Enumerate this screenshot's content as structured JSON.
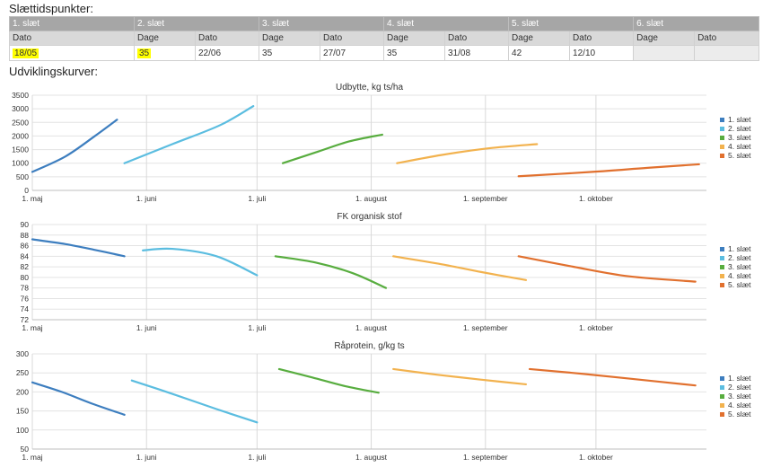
{
  "headings": {
    "cut_times": "Slættidspunkter:",
    "curves": "Udviklingskurver:"
  },
  "table": {
    "headers": [
      "1. slæt",
      "2. slæt",
      "3. slæt",
      "4. slæt",
      "5. slæt",
      "6. slæt"
    ],
    "sub": [
      "Dato",
      "Dage",
      "Dato",
      "Dage",
      "Dato",
      "Dage",
      "Dato",
      "Dage",
      "Dato",
      "Dage",
      "Dato"
    ],
    "values": [
      "18/05",
      "35",
      "22/06",
      "35",
      "27/07",
      "35",
      "31/08",
      "42",
      "12/10",
      "",
      ""
    ]
  },
  "colors": {
    "1. slæt": "#3d7ebf",
    "2. slæt": "#5bbde0",
    "3. slæt": "#58ad3f",
    "4. slæt": "#f2b24e",
    "5. slæt": "#e1702e"
  },
  "chart_data": [
    {
      "type": "line",
      "title": "Udbytte, kg ts/ha",
      "x_axis_type": "date",
      "x_tick_labels": [
        "1. maj",
        "1. juni",
        "1. juli",
        "1. august",
        "1. september",
        "1. oktober"
      ],
      "x_tick_dates": [
        "05-01",
        "06-01",
        "07-01",
        "08-01",
        "09-01",
        "10-01"
      ],
      "xlim": [
        "05-01",
        "10-31"
      ],
      "ylim": [
        0,
        3500
      ],
      "yticks": [
        0,
        500,
        1000,
        1500,
        2000,
        2500,
        3000,
        3500
      ],
      "grid": true,
      "legend": "right",
      "series": [
        {
          "name": "1. slæt",
          "points": [
            [
              "05-01",
              680
            ],
            [
              "05-10",
              1250
            ],
            [
              "05-18",
              2000
            ],
            [
              "05-24",
              2600
            ]
          ]
        },
        {
          "name": "2. slæt",
          "points": [
            [
              "05-26",
              1000
            ],
            [
              "06-08",
              1700
            ],
            [
              "06-21",
              2400
            ],
            [
              "06-30",
              3100
            ]
          ]
        },
        {
          "name": "3. slæt",
          "points": [
            [
              "07-08",
              1000
            ],
            [
              "07-17",
              1400
            ],
            [
              "07-26",
              1800
            ],
            [
              "08-04",
              2050
            ]
          ]
        },
        {
          "name": "4. slæt",
          "points": [
            [
              "08-08",
              1000
            ],
            [
              "08-20",
              1300
            ],
            [
              "09-02",
              1550
            ],
            [
              "09-15",
              1700
            ]
          ]
        },
        {
          "name": "5. slæt",
          "points": [
            [
              "09-10",
              520
            ],
            [
              "09-30",
              680
            ],
            [
              "10-15",
              830
            ],
            [
              "10-29",
              960
            ]
          ]
        }
      ]
    },
    {
      "type": "line",
      "title": "FK organisk stof",
      "x_axis_type": "date",
      "x_tick_labels": [
        "1. maj",
        "1. juni",
        "1. juli",
        "1. august",
        "1. september",
        "1. oktober"
      ],
      "x_tick_dates": [
        "05-01",
        "06-01",
        "07-01",
        "08-01",
        "09-01",
        "10-01"
      ],
      "xlim": [
        "05-01",
        "10-31"
      ],
      "ylim": [
        72,
        90
      ],
      "yticks": [
        72,
        74,
        76,
        78,
        80,
        82,
        84,
        86,
        88,
        90
      ],
      "grid": true,
      "legend": "right",
      "series": [
        {
          "name": "1. slæt",
          "points": [
            [
              "05-01",
              87.2
            ],
            [
              "05-10",
              86.3
            ],
            [
              "05-18",
              85.2
            ],
            [
              "05-26",
              84.0
            ]
          ]
        },
        {
          "name": "2. slæt",
          "points": [
            [
              "05-31",
              85.1
            ],
            [
              "06-08",
              85.4
            ],
            [
              "06-20",
              84.0
            ],
            [
              "07-01",
              80.4
            ]
          ]
        },
        {
          "name": "3. slæt",
          "points": [
            [
              "07-06",
              84.0
            ],
            [
              "07-17",
              82.8
            ],
            [
              "07-27",
              80.8
            ],
            [
              "08-05",
              78.0
            ]
          ]
        },
        {
          "name": "4. slæt",
          "points": [
            [
              "08-07",
              84.0
            ],
            [
              "08-20",
              82.5
            ],
            [
              "08-31",
              81.0
            ],
            [
              "09-12",
              79.5
            ]
          ]
        },
        {
          "name": "5. slæt",
          "points": [
            [
              "09-10",
              84.0
            ],
            [
              "09-25",
              82.0
            ],
            [
              "10-10",
              80.2
            ],
            [
              "10-28",
              79.2
            ]
          ]
        }
      ]
    },
    {
      "type": "line",
      "title": "Råprotein, g/kg ts",
      "x_axis_type": "date",
      "x_tick_labels": [
        "1. maj",
        "1. juni",
        "1. juli",
        "1. august",
        "1. september",
        "1. oktober"
      ],
      "x_tick_dates": [
        "05-01",
        "06-01",
        "07-01",
        "08-01",
        "09-01",
        "10-01"
      ],
      "xlim": [
        "05-01",
        "10-31"
      ],
      "ylim": [
        50,
        300
      ],
      "yticks": [
        50,
        100,
        150,
        200,
        250,
        300
      ],
      "grid": true,
      "legend": "right",
      "series": [
        {
          "name": "1. slæt",
          "points": [
            [
              "05-01",
              225
            ],
            [
              "05-09",
              200
            ],
            [
              "05-17",
              170
            ],
            [
              "05-26",
              140
            ]
          ]
        },
        {
          "name": "2. slæt",
          "points": [
            [
              "05-28",
              230
            ],
            [
              "06-08",
              195
            ],
            [
              "06-20",
              155
            ],
            [
              "07-01",
              120
            ]
          ]
        },
        {
          "name": "3. slæt",
          "points": [
            [
              "07-07",
              260
            ],
            [
              "07-16",
              238
            ],
            [
              "07-25",
              215
            ],
            [
              "08-03",
              198
            ]
          ]
        },
        {
          "name": "4. slæt",
          "points": [
            [
              "08-07",
              260
            ],
            [
              "08-19",
              245
            ],
            [
              "08-31",
              232
            ],
            [
              "09-12",
              220
            ]
          ]
        },
        {
          "name": "5. slæt",
          "points": [
            [
              "09-13",
              260
            ],
            [
              "09-28",
              247
            ],
            [
              "10-13",
              232
            ],
            [
              "10-28",
              217
            ]
          ]
        }
      ]
    }
  ]
}
